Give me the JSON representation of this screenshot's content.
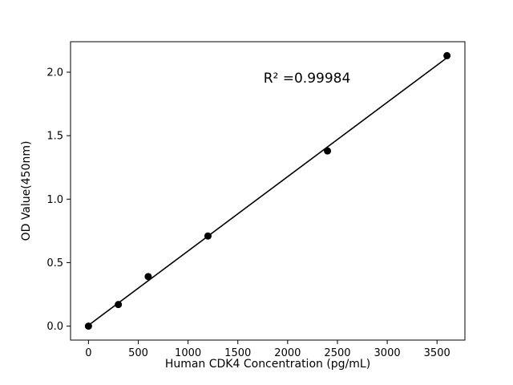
{
  "chart_data": {
    "type": "scatter",
    "title": "",
    "xlabel": "Human CDK4 Concentration (pg/mL)",
    "ylabel": "OD Value(450nm)",
    "annotation": "R² =0.99984",
    "x": [
      0,
      300,
      600,
      1200,
      2400,
      3600
    ],
    "y": [
      0.0,
      0.17,
      0.39,
      0.71,
      1.38,
      2.13
    ],
    "x_ticks": [
      0,
      500,
      1000,
      1500,
      2000,
      2500,
      3000,
      3500
    ],
    "y_ticks": [
      0.0,
      0.5,
      1.0,
      1.5,
      2.0
    ],
    "xlim": [
      -180,
      3780
    ],
    "ylim": [
      -0.11,
      2.24
    ],
    "grid": false,
    "legend": "none",
    "fit_line": true,
    "marker_color": "#000000",
    "line_color": "#000000",
    "background_color": "#ffffff"
  }
}
